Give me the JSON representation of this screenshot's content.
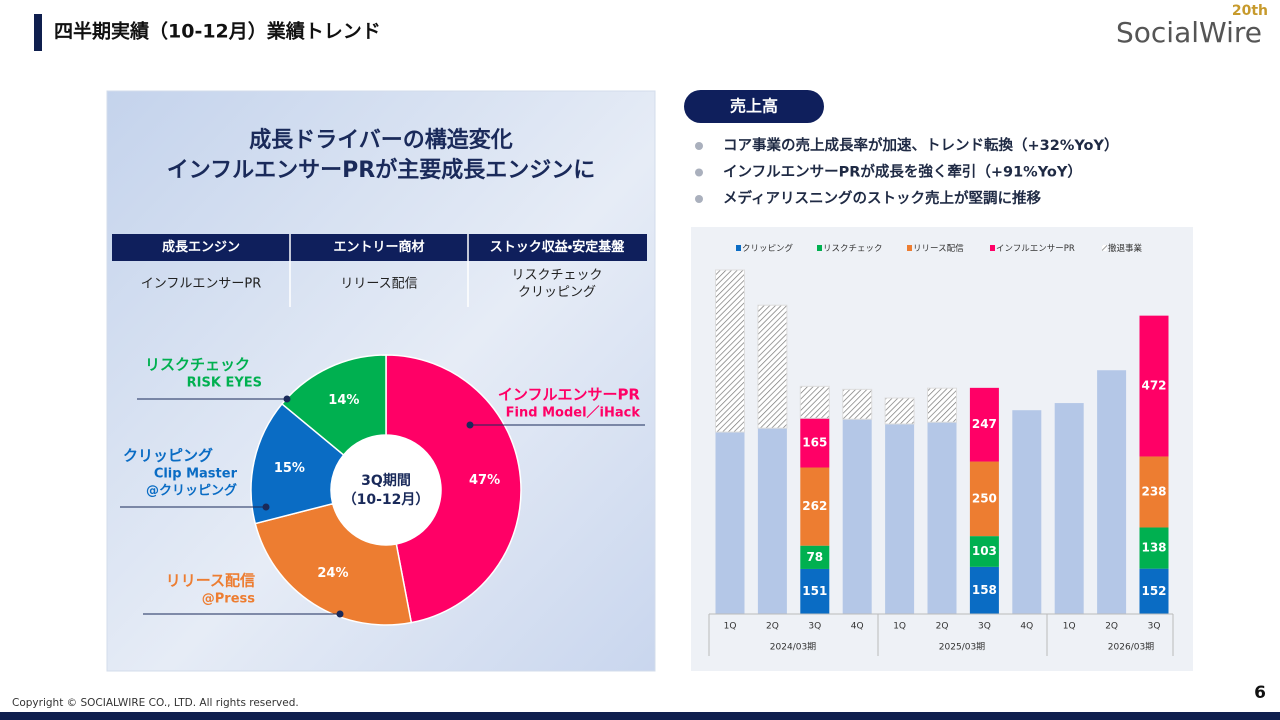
{
  "header": {
    "title": "四半期実績（10-12月）業績トレンド"
  },
  "logo": {
    "name": "SocialWire",
    "badge": "20th"
  },
  "panel": {
    "headline": [
      "成長ドライバーの構造変化",
      "インフルエンサーPRが主要成長エンジンに"
    ],
    "table": {
      "headers": [
        "成長エンジン",
        "エントリー商材",
        "ストック収益・安定基盤"
      ],
      "rows": [
        [
          [
            "インフルエンサーPR"
          ],
          [
            "リリース配信"
          ],
          [
            "リスクチェック",
            "クリッピング"
          ]
        ]
      ]
    }
  },
  "section": {
    "label": "売上高",
    "bullets": [
      "コア事業の売上成長率が加速、トレンド転換（+32%YoY）",
      "インフルエンサーPRが成長を強く牽引（+91%YoY）",
      "メディアリスニングのストック売上が堅調に推移"
    ]
  },
  "chart_data": [
    {
      "type": "donut",
      "categories": [
        "インフルエンサーPR",
        "リリース配信",
        "クリッピング",
        "リスクチェック"
      ],
      "sublabels": [
        [
          "Find Model／iHack"
        ],
        [
          "@Press"
        ],
        [
          "Clip Master",
          "@クリッピング"
        ],
        [
          "RISK EYES"
        ]
      ],
      "values": [
        47,
        24,
        15,
        14
      ],
      "value_labels": [
        "47%",
        "24%",
        "15%",
        "14%"
      ],
      "colors": [
        "#ff0066",
        "#ed7d31",
        "#0a6cc4",
        "#00b050"
      ],
      "center_label": [
        "3Q期間",
        "（10-12月）"
      ]
    },
    {
      "type": "stacked-bar",
      "categories": [
        "1Q",
        "2Q",
        "3Q",
        "4Q",
        "1Q",
        "2Q",
        "3Q",
        "4Q",
        "1Q",
        "2Q",
        "3Q"
      ],
      "groups": [
        "2024/03期",
        "2025/03期",
        "2026/03期"
      ],
      "series": [
        {
          "color": "#b4c7e7",
          "values": [
            610,
            623,
            null,
            653,
            637,
            643,
            null,
            683,
            707,
            817,
            null
          ]
        },
        {
          "name": "クリッピング",
          "color": "#0a6cc4",
          "labels": true,
          "values": [
            null,
            null,
            151,
            null,
            null,
            null,
            158,
            null,
            null,
            null,
            152
          ]
        },
        {
          "name": "リスクチェック",
          "color": "#00b050",
          "labels": true,
          "values": [
            null,
            null,
            78,
            null,
            null,
            null,
            103,
            null,
            null,
            null,
            138
          ]
        },
        {
          "name": "リリース配信",
          "color": "#ed7d31",
          "labels": true,
          "values": [
            null,
            null,
            262,
            null,
            null,
            null,
            250,
            null,
            null,
            null,
            238
          ]
        },
        {
          "name": "インフルエンサーPR",
          "color": "#ff0066",
          "labels": true,
          "values": [
            null,
            null,
            165,
            null,
            null,
            null,
            247,
            null,
            null,
            null,
            472
          ]
        },
        {
          "name": "撤退事業",
          "color": "hatch",
          "values": [
            543,
            412,
            107,
            100,
            87,
            114,
            null,
            null,
            null,
            null,
            null
          ]
        }
      ]
    }
  ],
  "footer": {
    "copyright": "Copyright © SOCIALWIRE CO., LTD. All rights reserved.",
    "page": "6"
  }
}
